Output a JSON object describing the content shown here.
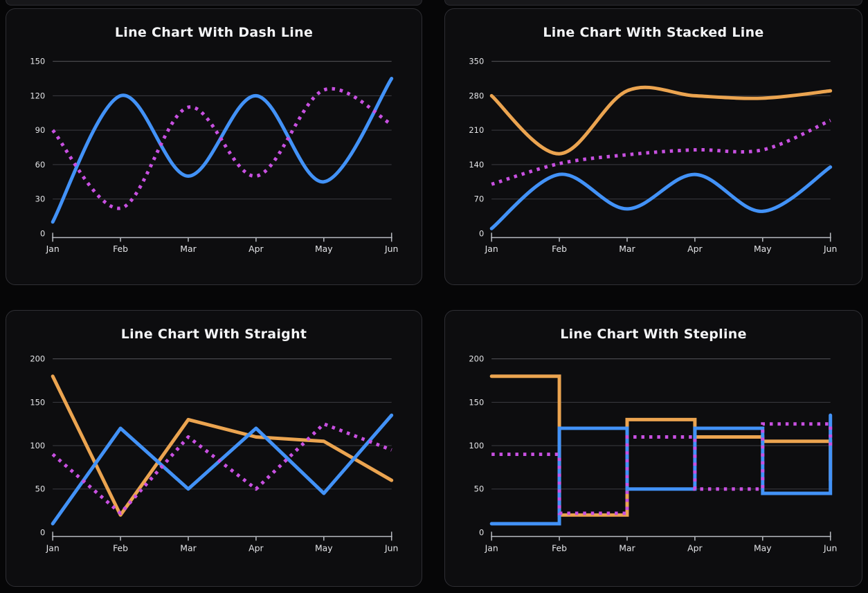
{
  "page": {
    "colors": {
      "page_bg": "#060607",
      "card_bg": "#0d0d0f",
      "card_border": "#2f2f34",
      "blue": "#4292f7",
      "magenta": "#c850e1",
      "orange": "#eba450",
      "grid": "#3c3d42",
      "grid_strong": "#55565b",
      "axis": "#b9bcc2",
      "tick_label": "#e4e5e8",
      "title": "#f4f5f7"
    }
  },
  "chart_data": [
    {
      "type": "line",
      "variant": "smooth",
      "stacked": false,
      "title": "Line Chart With Dash Line",
      "categories": [
        "Jan",
        "Feb",
        "Mar",
        "Apr",
        "May",
        "Jun"
      ],
      "ylim": [
        0,
        150
      ],
      "yticks": [
        0,
        30,
        60,
        90,
        120,
        150
      ],
      "grid": "horizontal",
      "legend": "none",
      "series": [
        {
          "color": "#4292f7",
          "line_style": "solid",
          "values": [
            10,
            120,
            50,
            120,
            45,
            135
          ]
        },
        {
          "color": "#c850e1",
          "line_style": "dashed",
          "values": [
            90,
            22,
            110,
            50,
            125,
            95
          ]
        }
      ]
    },
    {
      "type": "line",
      "variant": "smooth",
      "stacked": true,
      "title": "Line Chart With Stacked Line",
      "categories": [
        "Jan",
        "Feb",
        "Mar",
        "Apr",
        "May",
        "Jun"
      ],
      "ylim": [
        0,
        350
      ],
      "yticks": [
        0,
        70,
        140,
        210,
        280,
        350
      ],
      "grid": "horizontal",
      "legend": "none",
      "series": [
        {
          "color": "#4292f7",
          "line_style": "solid",
          "values": [
            10,
            120,
            50,
            120,
            45,
            135
          ]
        },
        {
          "color": "#c850e1",
          "line_style": "dashed",
          "values": [
            90,
            22,
            110,
            50,
            125,
            95
          ]
        },
        {
          "color": "#eba450",
          "line_style": "solid",
          "values": [
            180,
            20,
            130,
            110,
            105,
            60
          ]
        }
      ],
      "stacked_totals_top_line": [
        280,
        162,
        290,
        280,
        275,
        290
      ]
    },
    {
      "type": "line",
      "variant": "straight",
      "stacked": false,
      "title": "Line Chart With Straight",
      "categories": [
        "Jan",
        "Feb",
        "Mar",
        "Apr",
        "May",
        "Jun"
      ],
      "ylim": [
        0,
        200
      ],
      "yticks": [
        0,
        50,
        100,
        150,
        200
      ],
      "grid": "horizontal",
      "legend": "none",
      "series": [
        {
          "color": "#eba450",
          "line_style": "solid",
          "values": [
            180,
            20,
            130,
            110,
            105,
            60
          ]
        },
        {
          "color": "#4292f7",
          "line_style": "solid",
          "values": [
            10,
            120,
            50,
            120,
            45,
            135
          ]
        },
        {
          "color": "#c850e1",
          "line_style": "dashed",
          "values": [
            90,
            22,
            110,
            50,
            125,
            95
          ]
        }
      ]
    },
    {
      "type": "line",
      "variant": "stepline",
      "stacked": false,
      "title": "Line Chart With Stepline",
      "categories": [
        "Jan",
        "Feb",
        "Mar",
        "Apr",
        "May",
        "Jun"
      ],
      "ylim": [
        0,
        200
      ],
      "yticks": [
        0,
        50,
        100,
        150,
        200
      ],
      "grid": "horizontal",
      "legend": "none",
      "series": [
        {
          "color": "#eba450",
          "line_style": "solid",
          "values": [
            180,
            20,
            130,
            110,
            105,
            60
          ]
        },
        {
          "color": "#4292f7",
          "line_style": "solid",
          "values": [
            10,
            120,
            50,
            120,
            45,
            135
          ]
        },
        {
          "color": "#c850e1",
          "line_style": "dashed",
          "values": [
            90,
            22,
            110,
            50,
            125,
            95
          ]
        }
      ]
    }
  ]
}
